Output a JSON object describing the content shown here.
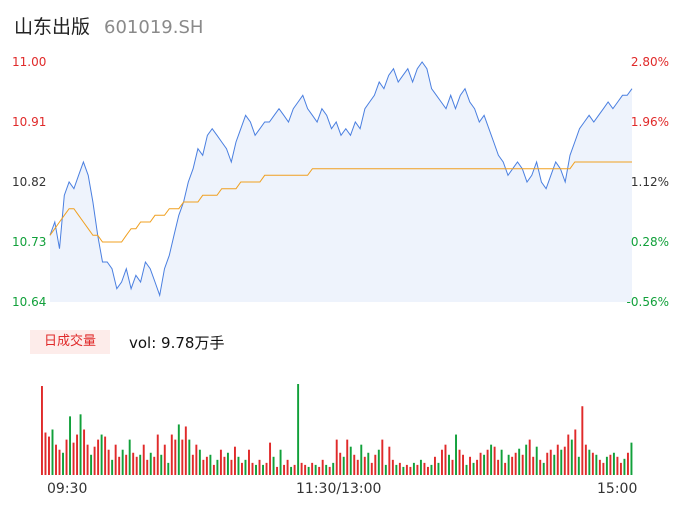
{
  "header": {
    "name": "山东出版",
    "code": "601019.SH"
  },
  "badge_label": "日成交量",
  "volume_text": "vol: 9.78万手",
  "colors": {
    "price": "#4a7fe0",
    "avg": "#f0a020",
    "up": "#e02a2a",
    "down": "#11a03a",
    "fill": "#eef3fc"
  },
  "chart_data": [
    {
      "type": "line",
      "y_ticks_price": [
        "11.00",
        "10.91",
        "10.82",
        "10.73",
        "10.64"
      ],
      "y_ticks_pct": [
        "2.80%",
        "1.96%",
        "1.12%",
        "0.28%",
        "-0.56%"
      ],
      "ylim": [
        10.64,
        11.0
      ],
      "x_ticks": [
        "09:30",
        "11:30/13:00",
        "15:00"
      ],
      "series": [
        {
          "values": [
            10.74,
            10.76,
            10.72,
            10.8,
            10.82,
            10.81,
            10.83,
            10.85,
            10.83,
            10.79,
            10.74,
            10.7,
            10.7,
            10.69,
            10.66,
            10.67,
            10.69,
            10.66,
            10.68,
            10.67,
            10.7,
            10.69,
            10.67,
            10.65,
            10.69,
            10.71,
            10.74,
            10.77,
            10.79,
            10.82,
            10.84,
            10.87,
            10.86,
            10.89,
            10.9,
            10.89,
            10.88,
            10.87,
            10.85,
            10.88,
            10.9,
            10.92,
            10.91,
            10.89,
            10.9,
            10.91,
            10.91,
            10.92,
            10.93,
            10.92,
            10.91,
            10.93,
            10.94,
            10.95,
            10.93,
            10.92,
            10.91,
            10.93,
            10.92,
            10.9,
            10.91,
            10.89,
            10.9,
            10.89,
            10.91,
            10.9,
            10.93,
            10.94,
            10.95,
            10.97,
            10.96,
            10.98,
            10.99,
            10.97,
            10.98,
            10.99,
            10.97,
            10.99,
            11.0,
            10.99,
            10.96,
            10.95,
            10.94,
            10.93,
            10.95,
            10.93,
            10.95,
            10.96,
            10.94,
            10.93,
            10.91,
            10.92,
            10.9,
            10.88,
            10.86,
            10.85,
            10.83,
            10.84,
            10.85,
            10.84,
            10.82,
            10.83,
            10.85,
            10.82,
            10.81,
            10.83,
            10.85,
            10.84,
            10.82,
            10.86,
            10.88,
            10.9,
            10.91,
            10.92,
            10.91,
            10.92,
            10.93,
            10.94,
            10.93,
            10.94,
            10.95,
            10.95,
            10.96
          ]
        },
        {
          "values": [
            10.74,
            10.75,
            10.76,
            10.77,
            10.78,
            10.78,
            10.77,
            10.76,
            10.75,
            10.74,
            10.74,
            10.73,
            10.73,
            10.73,
            10.73,
            10.73,
            10.74,
            10.75,
            10.75,
            10.76,
            10.76,
            10.76,
            10.77,
            10.77,
            10.77,
            10.78,
            10.78,
            10.78,
            10.79,
            10.79,
            10.79,
            10.79,
            10.8,
            10.8,
            10.8,
            10.8,
            10.81,
            10.81,
            10.81,
            10.81,
            10.82,
            10.82,
            10.82,
            10.82,
            10.82,
            10.83,
            10.83,
            10.83,
            10.83,
            10.83,
            10.83,
            10.83,
            10.83,
            10.83,
            10.83,
            10.84,
            10.84,
            10.84,
            10.84,
            10.84,
            10.84,
            10.84,
            10.84,
            10.84,
            10.84,
            10.84,
            10.84,
            10.84,
            10.84,
            10.84,
            10.84,
            10.84,
            10.84,
            10.84,
            10.84,
            10.84,
            10.84,
            10.84,
            10.84,
            10.84,
            10.84,
            10.84,
            10.84,
            10.84,
            10.84,
            10.84,
            10.84,
            10.84,
            10.84,
            10.84,
            10.84,
            10.84,
            10.84,
            10.84,
            10.84,
            10.84,
            10.84,
            10.84,
            10.84,
            10.84,
            10.84,
            10.84,
            10.84,
            10.84,
            10.84,
            10.84,
            10.84,
            10.84,
            10.84,
            10.84,
            10.85,
            10.85,
            10.85,
            10.85,
            10.85,
            10.85,
            10.85,
            10.85,
            10.85,
            10.85,
            10.85,
            10.85,
            10.85
          ]
        }
      ]
    },
    {
      "type": "bar",
      "values": [
        88,
        42,
        38,
        45,
        30,
        25,
        22,
        35,
        58,
        32,
        40,
        60,
        45,
        30,
        20,
        28,
        35,
        40,
        38,
        25,
        15,
        30,
        18,
        25,
        20,
        35,
        22,
        18,
        20,
        30,
        15,
        22,
        18,
        40,
        20,
        30,
        12,
        40,
        35,
        50,
        35,
        48,
        35,
        20,
        30,
        25,
        15,
        18,
        20,
        10,
        15,
        25,
        18,
        22,
        15,
        28,
        18,
        12,
        15,
        25,
        12,
        10,
        15,
        10,
        12,
        32,
        18,
        8,
        25,
        10,
        15,
        8,
        10,
        90,
        12,
        10,
        8,
        12,
        10,
        8,
        15,
        10,
        8,
        12,
        35,
        22,
        18,
        35,
        28,
        20,
        15,
        30,
        18,
        22,
        12,
        20,
        25,
        35,
        10,
        28,
        15,
        10,
        12,
        8,
        10,
        8,
        12,
        10,
        15,
        12,
        8,
        10,
        18,
        12,
        25,
        30,
        20,
        15,
        40,
        25,
        20,
        10,
        18,
        12,
        15,
        22,
        20,
        25,
        30,
        28,
        15,
        25,
        12,
        20,
        18,
        22,
        26,
        20,
        30,
        35,
        18,
        28,
        15,
        12,
        22,
        25,
        20,
        30,
        25,
        28,
        40,
        35,
        45,
        18,
        68,
        30,
        25,
        22,
        20,
        15,
        12,
        18,
        20,
        22,
        18,
        12,
        16,
        22,
        32
      ],
      "directions": [
        1,
        1,
        1,
        0,
        1,
        1,
        0,
        1,
        0,
        1,
        1,
        0,
        1,
        1,
        0,
        1,
        1,
        0,
        1,
        1,
        0,
        1,
        1,
        0,
        1,
        0,
        1,
        1,
        0,
        1,
        1,
        0,
        1,
        1,
        0,
        1,
        0,
        1,
        1,
        0,
        1,
        1,
        0,
        1,
        1,
        0,
        1,
        1,
        0,
        1,
        0,
        1,
        1,
        0,
        1,
        1,
        0,
        1,
        0,
        1,
        1,
        0,
        1,
        0,
        1,
        1,
        0,
        1,
        0,
        1,
        1,
        0,
        1,
        0,
        1,
        1,
        0,
        1,
        0,
        1,
        1,
        0,
        1,
        0,
        1,
        1,
        0,
        1,
        0,
        1,
        1,
        0,
        1,
        0,
        1,
        1,
        0,
        1,
        0,
        1,
        1,
        0,
        1,
        0,
        1,
        1,
        0,
        1,
        0,
        1,
        1,
        0,
        1,
        0,
        1,
        1,
        0,
        1,
        0,
        1,
        1,
        0,
        1,
        0,
        1,
        1,
        0,
        1,
        0,
        1,
        1,
        0,
        1,
        0,
        1,
        1,
        0,
        1,
        0,
        1,
        1,
        0,
        1,
        0,
        1,
        1,
        0,
        1,
        0,
        1,
        1,
        0,
        1,
        0,
        1,
        1,
        0,
        1,
        0,
        1,
        1,
        0,
        1,
        0,
        1,
        1,
        0,
        1,
        0,
        1,
        1,
        0
      ]
    }
  ]
}
